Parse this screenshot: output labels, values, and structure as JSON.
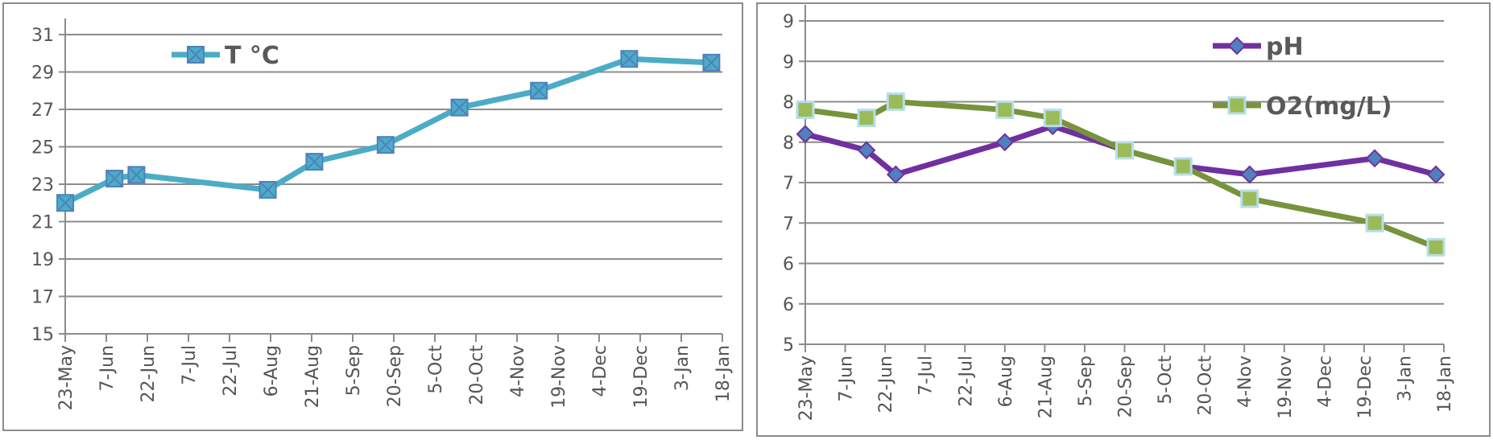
{
  "chart_data": [
    {
      "type": "line",
      "ylim": [
        15,
        31
      ],
      "yticks": [
        15,
        17,
        19,
        21,
        23,
        25,
        27,
        29,
        31
      ],
      "x_tick_labels": [
        "23-May",
        "7-Jun",
        "22-Jun",
        "7-Jul",
        "22-Jul",
        "6-Aug",
        "21-Aug",
        "5-Sep",
        "20-Sep",
        "5-Oct",
        "20-Oct",
        "4-Nov",
        "19-Nov",
        "4-Dec",
        "19-Dec",
        "3-Jan",
        "18-Jan"
      ],
      "x_start": "23-May",
      "grid": true,
      "legend_position": "top-left",
      "series": [
        {
          "name": "T °C",
          "color": "#4BACC6",
          "marker": "x-square",
          "x": [
            "23-May",
            "10-Jun",
            "18-Jun",
            "5-Aug",
            "22-Aug",
            "17-Sep",
            "14-Oct",
            "12-Nov",
            "15-Dec",
            "14-Jan"
          ],
          "values": [
            22.0,
            23.3,
            23.5,
            22.7,
            24.2,
            25.1,
            27.1,
            28.0,
            29.7,
            29.5
          ]
        }
      ]
    },
    {
      "type": "line",
      "ylim": [
        5,
        9
      ],
      "yticks": [
        5,
        5.5,
        6,
        6.5,
        7,
        7.5,
        8,
        8.5,
        9
      ],
      "ytick_labels": [
        "5",
        "6",
        "6",
        "7",
        "7",
        "8",
        "8",
        "9",
        "9"
      ],
      "x_tick_labels": [
        "23-May",
        "7-Jun",
        "22-Jun",
        "7-Jul",
        "22-Jul",
        "6-Aug",
        "21-Aug",
        "5-Sep",
        "20-Sep",
        "5-Oct",
        "20-Oct",
        "4-Nov",
        "19-Nov",
        "4-Dec",
        "19-Dec",
        "3-Jan",
        "18-Jan"
      ],
      "grid": true,
      "legend_position": "top-right",
      "series": [
        {
          "name": "pH",
          "color": "#7030A0",
          "marker": "diamond",
          "marker_color": "#4F81BD",
          "x": [
            "23-May",
            "15-Jun",
            "26-Jun",
            "6-Aug",
            "24-Aug",
            "20-Sep",
            "12-Oct",
            "6-Nov",
            "23-Dec",
            "15-Jan"
          ],
          "values": [
            7.6,
            7.4,
            7.1,
            7.5,
            7.7,
            7.4,
            7.2,
            7.1,
            7.3,
            7.1
          ]
        },
        {
          "name": "O2(mg/L)",
          "color": "#77933C",
          "marker": "square",
          "marker_color": "#9BBB59",
          "marker_border": "#B7DEE8",
          "x": [
            "23-May",
            "15-Jun",
            "26-Jun",
            "6-Aug",
            "24-Aug",
            "20-Sep",
            "12-Oct",
            "6-Nov",
            "23-Dec",
            "15-Jan"
          ],
          "values": [
            7.9,
            7.8,
            8.0,
            7.9,
            7.8,
            7.4,
            7.2,
            6.8,
            6.5,
            6.2
          ]
        }
      ]
    }
  ]
}
